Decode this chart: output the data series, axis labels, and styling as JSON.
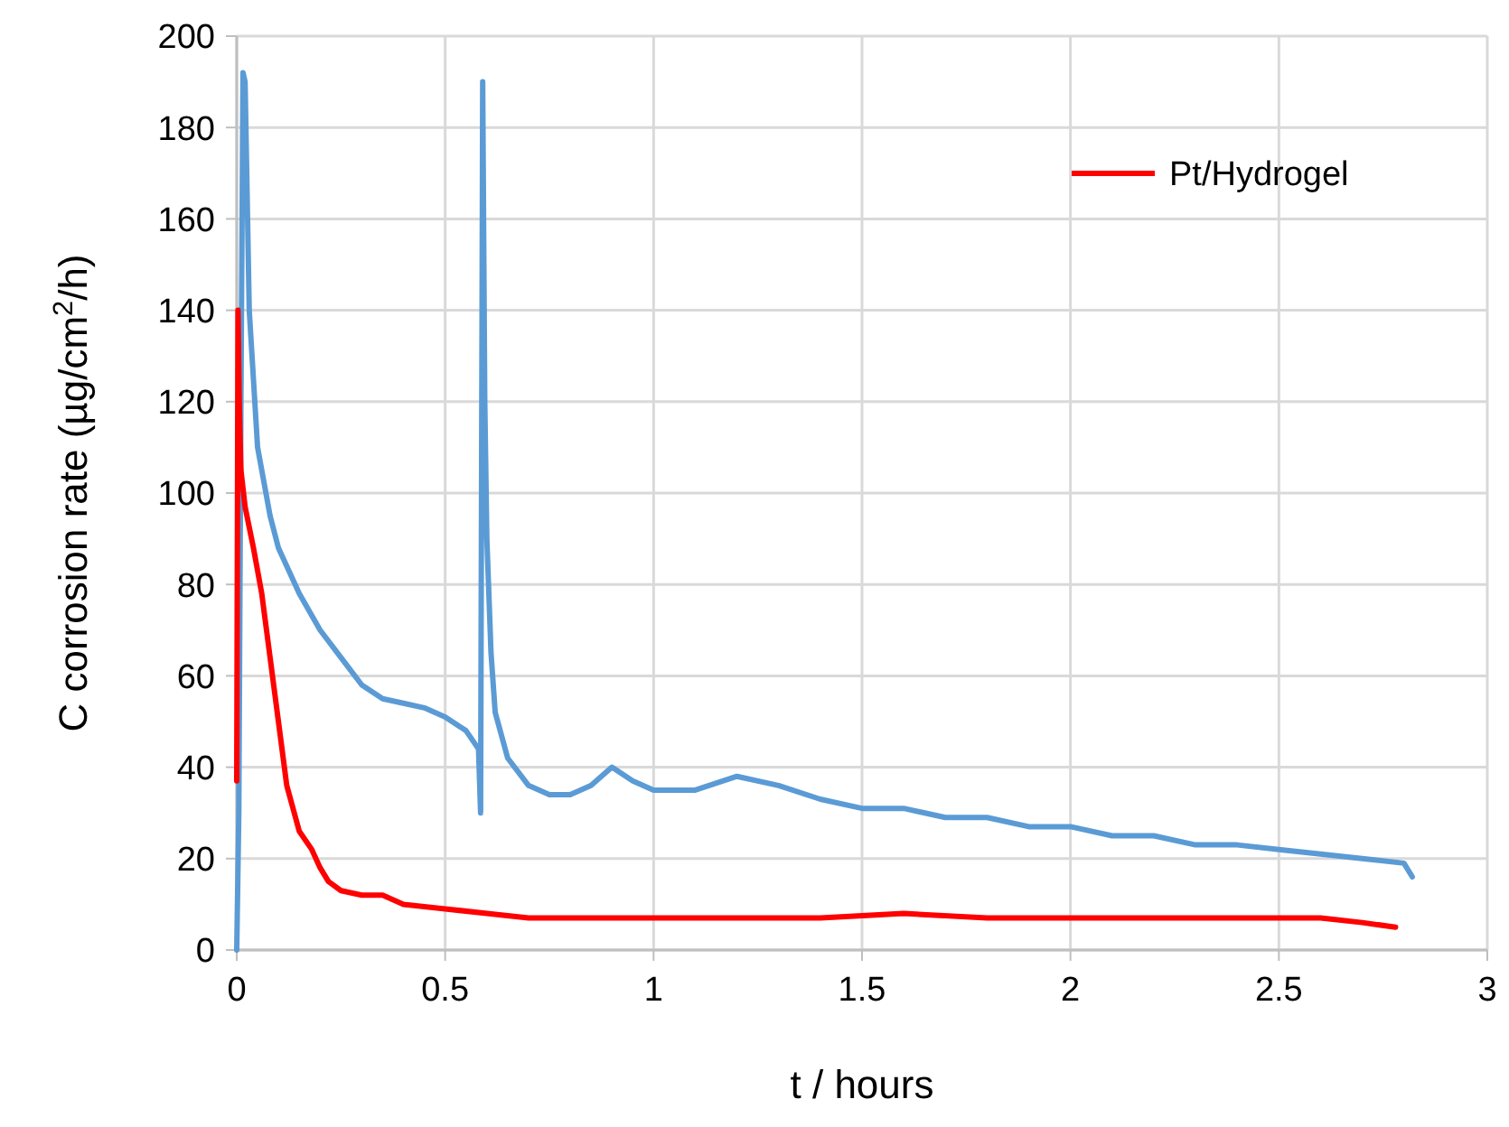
{
  "chart_data": {
    "type": "line",
    "xlabel": "t / hours",
    "ylabel": "C corrosion rate (µg/cm$^{2}$/h)",
    "xlim": [
      0,
      3
    ],
    "xticks": [
      0,
      0.5,
      1,
      1.5,
      2,
      2.5,
      3
    ],
    "ylim": [
      0,
      200
    ],
    "yticks": [
      0,
      20,
      40,
      60,
      80,
      100,
      120,
      140,
      160,
      180,
      200
    ],
    "grid": true,
    "legend": "top right",
    "line_style": "solid",
    "series": [
      {
        "color": "#5b9bd5",
        "x": [
          0,
          0.005,
          0.01,
          0.015,
          0.02,
          0.03,
          0.05,
          0.08,
          0.1,
          0.15,
          0.2,
          0.25,
          0.3,
          0.35,
          0.4,
          0.45,
          0.5,
          0.55,
          0.58,
          0.585,
          0.59,
          0.595,
          0.6,
          0.61,
          0.62,
          0.65,
          0.7,
          0.75,
          0.8,
          0.85,
          0.9,
          0.95,
          1.0,
          1.1,
          1.2,
          1.3,
          1.4,
          1.5,
          1.6,
          1.7,
          1.8,
          1.9,
          2.0,
          2.1,
          2.2,
          2.3,
          2.4,
          2.5,
          2.6,
          2.7,
          2.8,
          2.82
        ],
        "values": [
          0,
          30,
          120,
          192,
          190,
          140,
          110,
          95,
          88,
          78,
          70,
          64,
          58,
          55,
          54,
          53,
          51,
          48,
          44,
          30,
          190,
          120,
          90,
          65,
          52,
          42,
          36,
          34,
          34,
          36,
          40,
          37,
          35,
          35,
          38,
          36,
          33,
          31,
          31,
          29,
          29,
          27,
          27,
          25,
          25,
          23,
          23,
          22,
          21,
          20,
          19,
          16
        ]
      },
      {
        "name": "Pt/Hydrogel",
        "color": "#ff0000",
        "x": [
          0,
          0.003,
          0.006,
          0.01,
          0.02,
          0.04,
          0.06,
          0.08,
          0.1,
          0.12,
          0.15,
          0.18,
          0.2,
          0.22,
          0.25,
          0.3,
          0.35,
          0.4,
          0.5,
          0.6,
          0.7,
          0.8,
          0.9,
          1.0,
          1.2,
          1.4,
          1.6,
          1.8,
          2.0,
          2.2,
          2.4,
          2.6,
          2.7,
          2.78
        ],
        "values": [
          37,
          140,
          120,
          105,
          97,
          88,
          78,
          64,
          50,
          36,
          26,
          22,
          18,
          15,
          13,
          12,
          12,
          10,
          9,
          8,
          7,
          7,
          7,
          7,
          7,
          7,
          8,
          7,
          7,
          7,
          7,
          7,
          6,
          5
        ]
      }
    ]
  }
}
